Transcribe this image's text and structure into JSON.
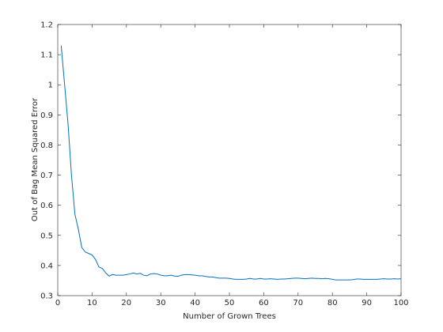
{
  "chart_data": {
    "type": "line",
    "x_label": "Number of Grown Trees",
    "y_label": "Out of Bag Mean Squared Error",
    "x": [
      1,
      2,
      3,
      4,
      5,
      6,
      7,
      8,
      9,
      10,
      11,
      12,
      13,
      14,
      15,
      16,
      17,
      18,
      19,
      20,
      21,
      22,
      23,
      24,
      25,
      26,
      27,
      28,
      29,
      30,
      31,
      32,
      33,
      34,
      35,
      36,
      37,
      38,
      39,
      40,
      41,
      42,
      43,
      44,
      45,
      46,
      47,
      48,
      49,
      50,
      51,
      52,
      53,
      54,
      55,
      56,
      57,
      58,
      59,
      60,
      61,
      62,
      63,
      64,
      65,
      66,
      67,
      68,
      69,
      70,
      71,
      72,
      73,
      74,
      75,
      76,
      77,
      78,
      79,
      80,
      81,
      82,
      83,
      84,
      85,
      86,
      87,
      88,
      89,
      90,
      91,
      92,
      93,
      94,
      95,
      96,
      97,
      98,
      99,
      100
    ],
    "series": [
      {
        "color": "#0072bd",
        "values": [
          1.13,
          1.0,
          0.87,
          0.7,
          0.57,
          0.52,
          0.46,
          0.445,
          0.44,
          0.435,
          0.42,
          0.395,
          0.39,
          0.375,
          0.365,
          0.37,
          0.368,
          0.368,
          0.368,
          0.37,
          0.372,
          0.375,
          0.372,
          0.374,
          0.368,
          0.366,
          0.372,
          0.373,
          0.372,
          0.368,
          0.366,
          0.366,
          0.368,
          0.365,
          0.364,
          0.368,
          0.37,
          0.37,
          0.369,
          0.368,
          0.366,
          0.366,
          0.364,
          0.362,
          0.362,
          0.36,
          0.358,
          0.358,
          0.358,
          0.357,
          0.355,
          0.354,
          0.354,
          0.354,
          0.355,
          0.357,
          0.355,
          0.355,
          0.357,
          0.355,
          0.355,
          0.356,
          0.355,
          0.354,
          0.355,
          0.355,
          0.356,
          0.357,
          0.358,
          0.358,
          0.357,
          0.356,
          0.357,
          0.358,
          0.357,
          0.357,
          0.356,
          0.357,
          0.356,
          0.354,
          0.352,
          0.352,
          0.352,
          0.352,
          0.352,
          0.353,
          0.355,
          0.355,
          0.354,
          0.354,
          0.354,
          0.354,
          0.354,
          0.355,
          0.356,
          0.355,
          0.355,
          0.356,
          0.355,
          0.356
        ]
      }
    ],
    "xlim": [
      0,
      100
    ],
    "xticks": [
      0,
      10,
      20,
      30,
      40,
      50,
      60,
      70,
      80,
      90,
      100
    ],
    "ylim": [
      0.3,
      1.2
    ],
    "yticks": [
      0.3,
      0.4,
      0.5,
      0.6,
      0.7,
      0.8,
      0.9,
      1,
      1.1,
      1.2
    ],
    "grid": false
  }
}
